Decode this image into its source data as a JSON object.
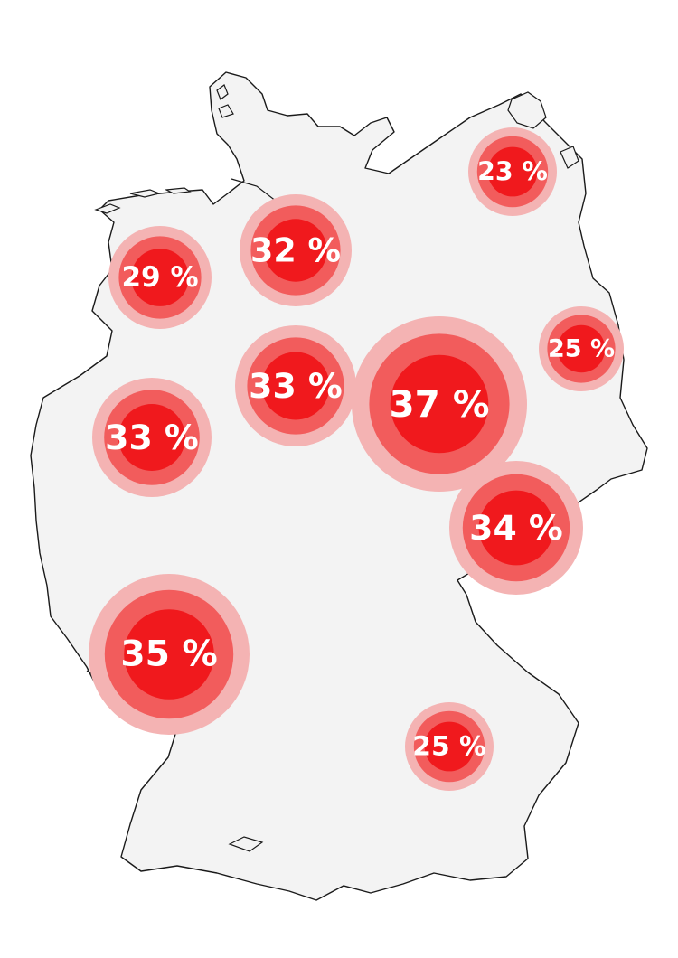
{
  "colors": {
    "land": "#f3f3f3",
    "border": "#1a1a1a",
    "ring_outer": "#f4b3b3",
    "ring_mid": "#f25c5c",
    "core": "#f0191d",
    "label": "#ffffff"
  },
  "bubbles": [
    {
      "id": "north-east",
      "label": "23 %",
      "value": 23
    },
    {
      "id": "north-west-coast",
      "label": "29 %",
      "value": 29
    },
    {
      "id": "north",
      "label": "32 %",
      "value": 32
    },
    {
      "id": "east",
      "label": "25 %",
      "value": 25
    },
    {
      "id": "centre-north",
      "label": "33 %",
      "value": 33
    },
    {
      "id": "centre",
      "label": "37 %",
      "value": 37
    },
    {
      "id": "west",
      "label": "33 %",
      "value": 33
    },
    {
      "id": "south-east-saxony",
      "label": "34 %",
      "value": 34
    },
    {
      "id": "south-west",
      "label": "35 %",
      "value": 35
    },
    {
      "id": "south",
      "label": "25 %",
      "value": 25
    }
  ]
}
